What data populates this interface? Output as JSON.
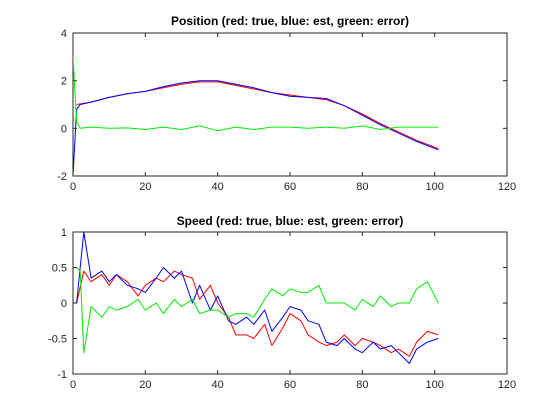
{
  "chart_data": [
    {
      "type": "line",
      "title": "Position (red: true, blue: est, green: error)",
      "xlabel": "",
      "ylabel": "",
      "xlim": [
        0,
        120
      ],
      "ylim": [
        -2,
        4
      ],
      "xticks": [
        0,
        20,
        40,
        60,
        80,
        100,
        120
      ],
      "yticks": [
        -2,
        0,
        2,
        4
      ],
      "grid": false,
      "series": [
        {
          "color": "#ff0000",
          "x": [
            1,
            5,
            10,
            15,
            20,
            25,
            30,
            35,
            40,
            45,
            50,
            55,
            60,
            65,
            70,
            75,
            80,
            85,
            90,
            95,
            101
          ],
          "y": [
            1.0,
            1.1,
            1.3,
            1.45,
            1.55,
            1.7,
            1.85,
            1.95,
            1.95,
            1.8,
            1.65,
            1.5,
            1.4,
            1.3,
            1.2,
            0.95,
            0.6,
            0.2,
            -0.15,
            -0.5,
            -0.85
          ]
        },
        {
          "color": "#0000ff",
          "x": [
            0,
            1,
            2,
            5,
            10,
            15,
            20,
            25,
            30,
            35,
            40,
            45,
            50,
            55,
            60,
            65,
            70,
            75,
            80,
            85,
            90,
            95,
            101
          ],
          "y": [
            -2.0,
            0.8,
            1.0,
            1.1,
            1.3,
            1.45,
            1.55,
            1.75,
            1.9,
            2.0,
            2.0,
            1.85,
            1.7,
            1.5,
            1.35,
            1.3,
            1.25,
            0.95,
            0.55,
            0.15,
            -0.2,
            -0.55,
            -0.9
          ]
        },
        {
          "color": "#00ee00",
          "x": [
            0,
            1,
            2,
            5,
            10,
            15,
            20,
            25,
            30,
            35,
            40,
            45,
            50,
            55,
            60,
            65,
            70,
            75,
            80,
            85,
            90,
            95,
            101
          ],
          "y": [
            3.0,
            0.3,
            0.0,
            0.05,
            0.0,
            0.02,
            -0.05,
            0.05,
            -0.05,
            0.1,
            -0.1,
            0.05,
            -0.05,
            0.05,
            0.05,
            0.0,
            0.05,
            0.0,
            0.1,
            -0.05,
            0.05,
            0.05,
            0.05
          ]
        }
      ]
    },
    {
      "type": "line",
      "title": "Speed (red: true, blue: est, green: error)",
      "xlabel": "",
      "ylabel": "",
      "xlim": [
        0,
        120
      ],
      "ylim": [
        -1,
        1
      ],
      "xticks": [
        0,
        20,
        40,
        60,
        80,
        100,
        120
      ],
      "yticks": [
        -1,
        -0.5,
        0,
        0.5,
        1
      ],
      "grid": false,
      "series": [
        {
          "color": "#ff0000",
          "x": [
            1,
            3,
            5,
            8,
            10,
            12,
            15,
            18,
            20,
            23,
            25,
            28,
            30,
            33,
            35,
            38,
            40,
            43,
            45,
            48,
            50,
            53,
            55,
            58,
            60,
            63,
            65,
            68,
            70,
            73,
            75,
            78,
            80,
            83,
            85,
            88,
            90,
            93,
            95,
            98,
            101
          ],
          "y": [
            0.0,
            0.45,
            0.3,
            0.4,
            0.25,
            0.4,
            0.3,
            0.1,
            0.25,
            0.35,
            0.3,
            0.45,
            0.4,
            0.35,
            0.05,
            0.25,
            0.0,
            -0.2,
            -0.45,
            -0.45,
            -0.5,
            -0.3,
            -0.6,
            -0.35,
            -0.15,
            -0.25,
            -0.45,
            -0.55,
            -0.6,
            -0.55,
            -0.45,
            -0.6,
            -0.5,
            -0.55,
            -0.6,
            -0.7,
            -0.65,
            -0.75,
            -0.55,
            -0.4,
            -0.45
          ]
        },
        {
          "color": "#0000ff",
          "x": [
            1,
            2,
            3,
            5,
            8,
            10,
            12,
            15,
            18,
            20,
            23,
            25,
            28,
            30,
            33,
            35,
            38,
            40,
            43,
            45,
            48,
            50,
            53,
            55,
            58,
            60,
            63,
            65,
            68,
            70,
            73,
            75,
            78,
            80,
            83,
            85,
            88,
            90,
            93,
            95,
            98,
            101
          ],
          "y": [
            0.0,
            0.5,
            1.0,
            0.35,
            0.45,
            0.3,
            0.4,
            0.25,
            0.2,
            0.15,
            0.35,
            0.5,
            0.35,
            0.45,
            0.0,
            0.25,
            -0.1,
            0.1,
            -0.25,
            -0.3,
            -0.2,
            -0.3,
            -0.1,
            -0.4,
            -0.2,
            -0.05,
            -0.1,
            -0.25,
            -0.3,
            -0.55,
            -0.6,
            -0.5,
            -0.65,
            -0.7,
            -0.55,
            -0.65,
            -0.6,
            -0.7,
            -0.85,
            -0.65,
            -0.55,
            -0.5
          ]
        },
        {
          "color": "#00ee00",
          "x": [
            1,
            2,
            3,
            5,
            8,
            10,
            12,
            15,
            18,
            20,
            23,
            25,
            28,
            30,
            33,
            35,
            38,
            40,
            43,
            45,
            48,
            50,
            53,
            55,
            58,
            60,
            63,
            65,
            68,
            70,
            73,
            75,
            78,
            80,
            83,
            85,
            88,
            90,
            93,
            95,
            98,
            101
          ],
          "y": [
            0.5,
            0.45,
            -0.7,
            -0.05,
            -0.2,
            -0.05,
            -0.1,
            -0.05,
            0.05,
            -0.1,
            0.0,
            -0.15,
            0.05,
            -0.05,
            0.05,
            -0.15,
            -0.1,
            -0.1,
            -0.2,
            -0.15,
            -0.15,
            -0.2,
            0.05,
            0.2,
            0.1,
            0.2,
            0.15,
            0.15,
            0.25,
            0.0,
            0.0,
            0.0,
            -0.1,
            0.05,
            -0.05,
            0.1,
            -0.05,
            0.0,
            0.0,
            0.2,
            0.3,
            0.0
          ]
        }
      ]
    }
  ]
}
